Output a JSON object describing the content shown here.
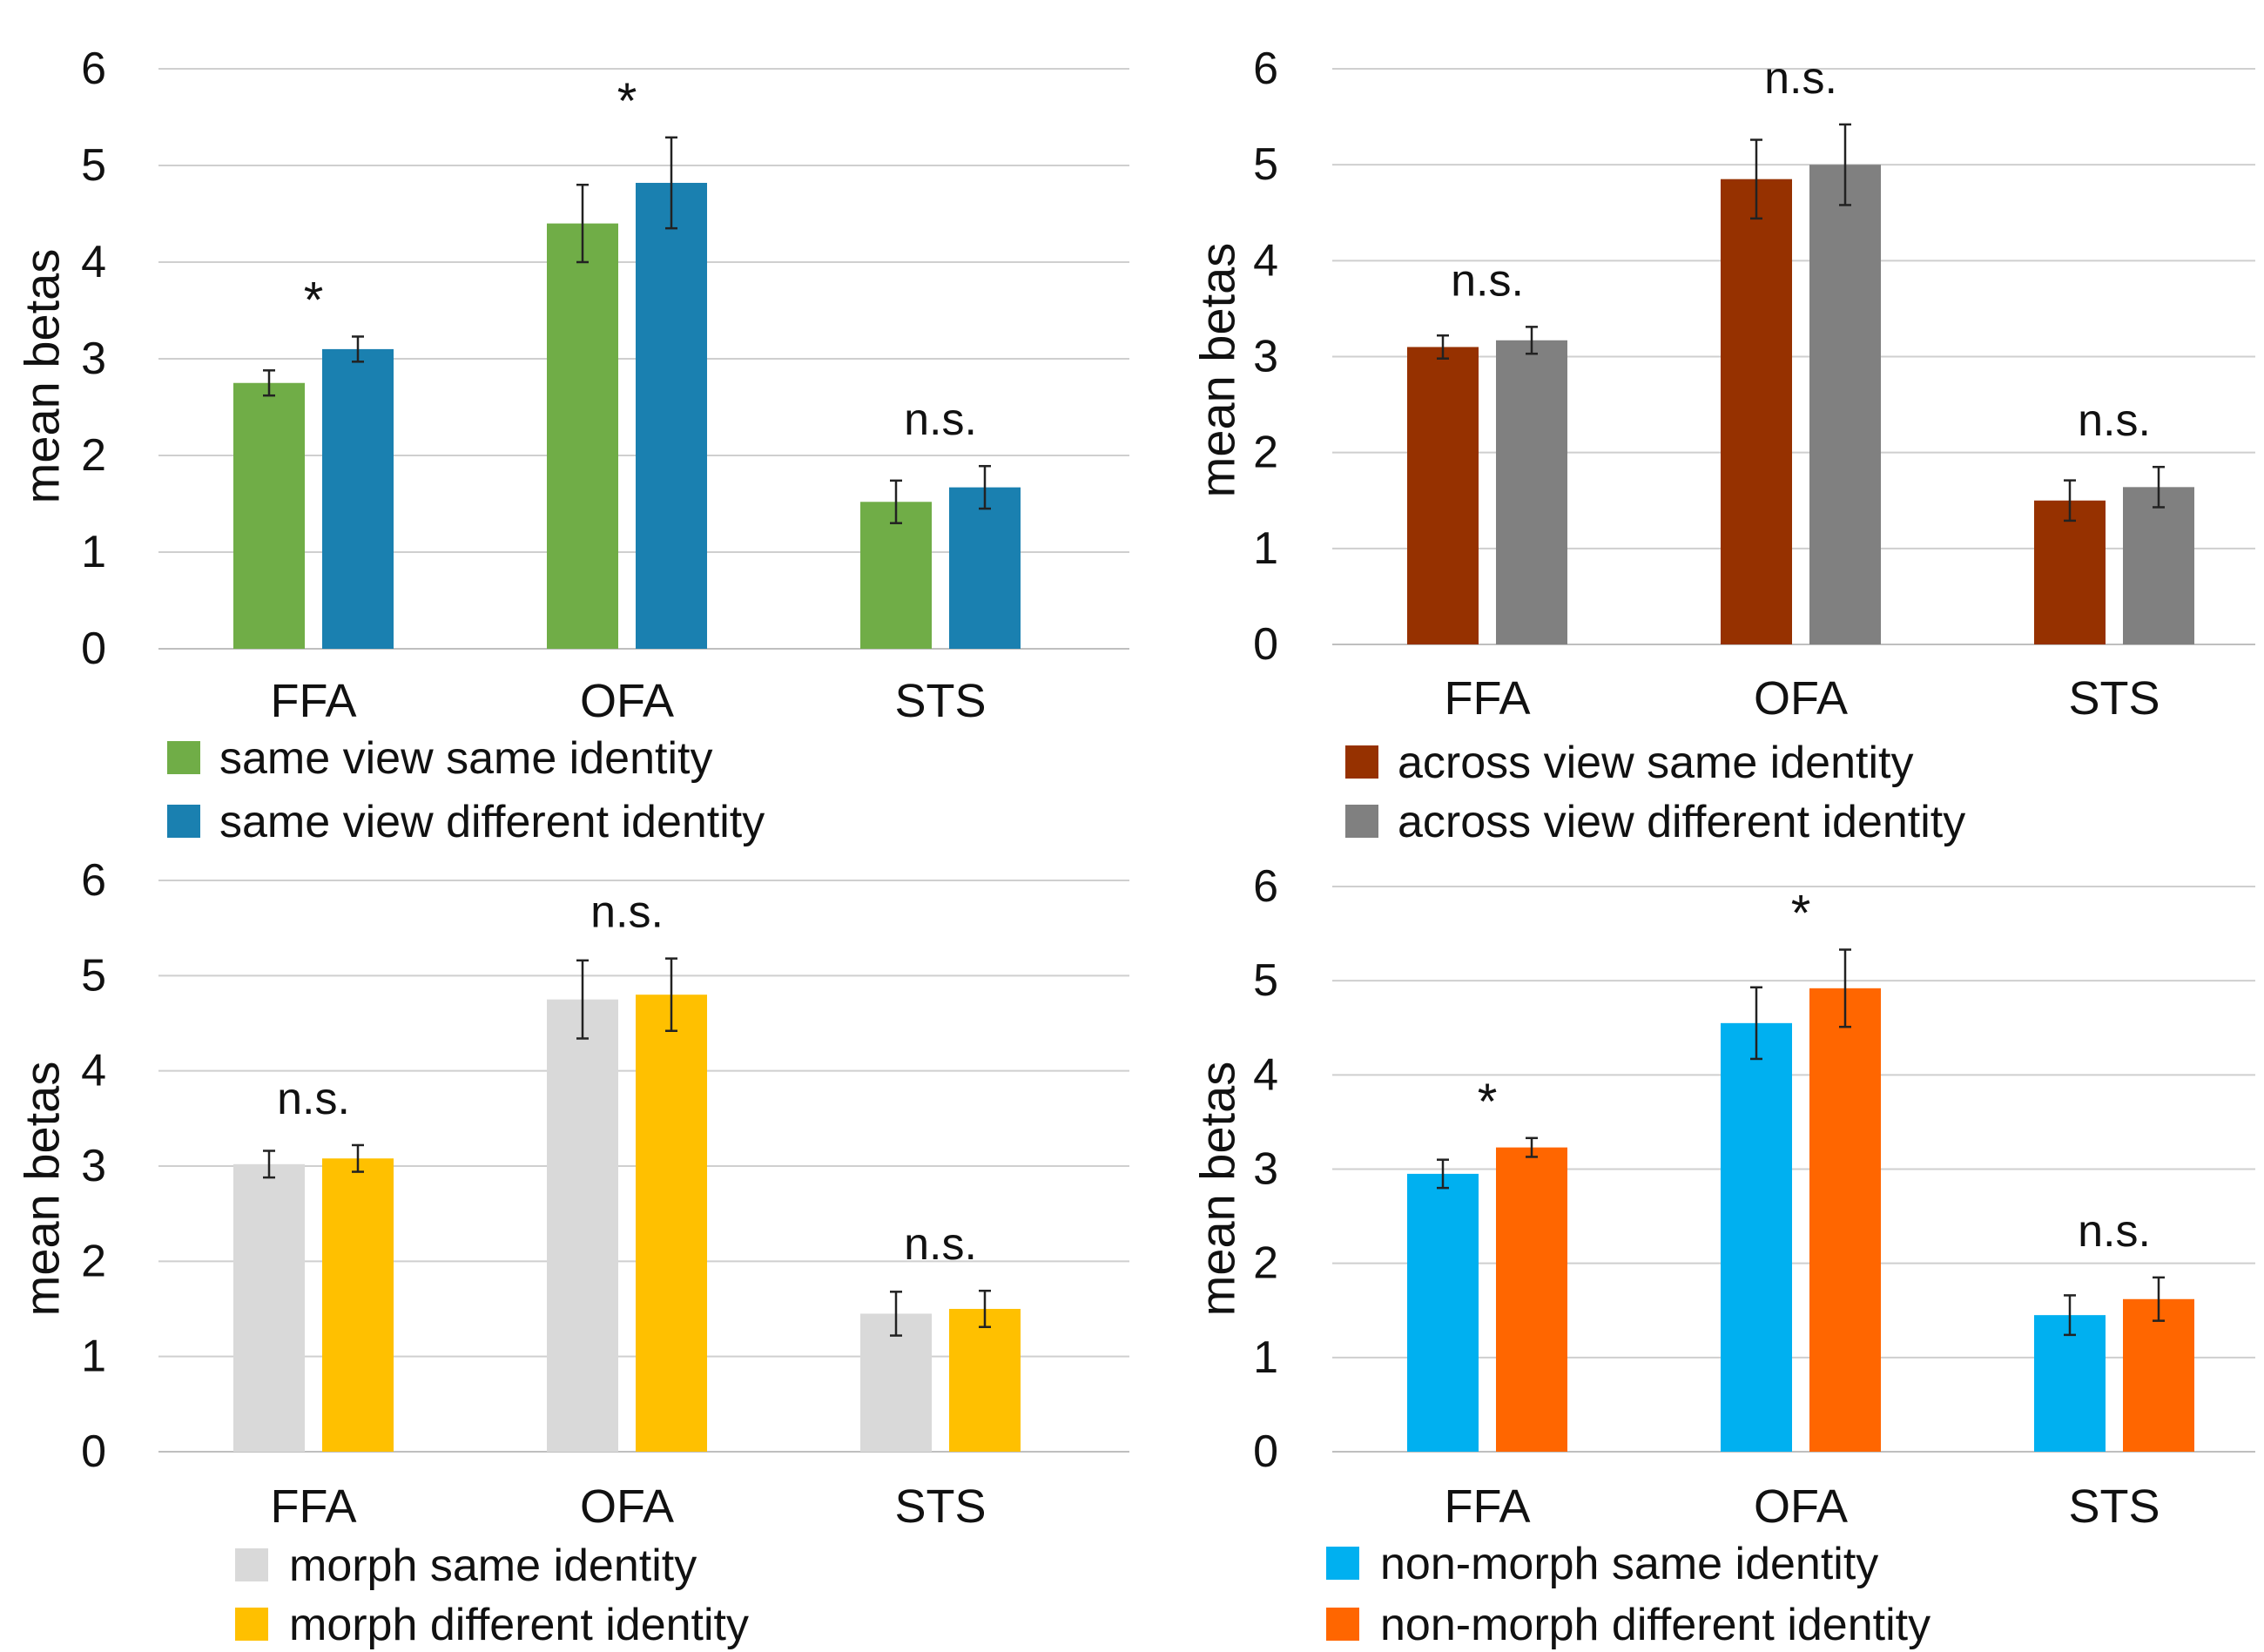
{
  "figure": {
    "panels": [
      {
        "id": "panel-same-view",
        "sig_labels": [
          "*",
          "*",
          "n.s."
        ],
        "colors": [
          "#70ad47",
          "#1a80b0"
        ]
      },
      {
        "id": "panel-across-view",
        "sig_labels": [
          "n.s.",
          "n.s.",
          "n.s."
        ],
        "colors": [
          "#963100",
          "#808080"
        ]
      },
      {
        "id": "panel-morph",
        "sig_labels": [
          "n.s.",
          "n.s.",
          "n.s."
        ],
        "colors": [
          "#d9d9d9",
          "#ffc000"
        ]
      },
      {
        "id": "panel-non-morph",
        "sig_labels": [
          "*",
          "*",
          "n.s."
        ],
        "colors": [
          "#00b0f0",
          "#ff6600"
        ]
      }
    ]
  },
  "chart_data": [
    {
      "type": "bar",
      "title": "",
      "xlabel": "",
      "ylabel": "mean betas",
      "ylim": [
        0,
        6
      ],
      "yticks": [
        "0",
        "1",
        "2",
        "3",
        "4",
        "5",
        "6"
      ],
      "categories": [
        "FFA",
        "OFA",
        "STS"
      ],
      "series": [
        {
          "name": "same view same identity",
          "values": [
            2.75,
            4.4,
            1.52
          ],
          "errors": [
            0.13,
            0.4,
            0.22
          ]
        },
        {
          "name": "same view different identity",
          "values": [
            3.1,
            4.82,
            1.67
          ],
          "errors": [
            0.13,
            0.47,
            0.22
          ]
        }
      ],
      "annotations": [
        "*",
        "*",
        "n.s."
      ]
    },
    {
      "type": "bar",
      "title": "",
      "xlabel": "",
      "ylabel": "mean betas",
      "ylim": [
        0,
        6
      ],
      "yticks": [
        "0",
        "1",
        "2",
        "3",
        "4",
        "5",
        "6"
      ],
      "categories": [
        "FFA",
        "OFA",
        "STS"
      ],
      "series": [
        {
          "name": "across view same identity",
          "values": [
            3.1,
            4.85,
            1.5
          ],
          "errors": [
            0.12,
            0.41,
            0.21
          ]
        },
        {
          "name": "across view different identity",
          "values": [
            3.17,
            5.0,
            1.64
          ],
          "errors": [
            0.14,
            0.42,
            0.21
          ]
        }
      ],
      "annotations": [
        "n.s.",
        "n.s.",
        "n.s."
      ]
    },
    {
      "type": "bar",
      "title": "",
      "xlabel": "",
      "ylabel": "mean betas",
      "ylim": [
        0,
        6
      ],
      "yticks": [
        "0",
        "1",
        "2",
        "3",
        "4",
        "5",
        "6"
      ],
      "categories": [
        "FFA",
        "OFA",
        "STS"
      ],
      "series": [
        {
          "name": "morph same identity",
          "values": [
            3.02,
            4.75,
            1.45
          ],
          "errors": [
            0.14,
            0.41,
            0.23
          ]
        },
        {
          "name": "morph different identity",
          "values": [
            3.08,
            4.8,
            1.5
          ],
          "errors": [
            0.14,
            0.38,
            0.19
          ]
        }
      ],
      "annotations": [
        "n.s.",
        "n.s.",
        "n.s."
      ]
    },
    {
      "type": "bar",
      "title": "",
      "xlabel": "",
      "ylabel": "mean betas",
      "ylim": [
        0,
        6
      ],
      "yticks": [
        "0",
        "1",
        "2",
        "3",
        "4",
        "5",
        "6"
      ],
      "categories": [
        "FFA",
        "OFA",
        "STS"
      ],
      "series": [
        {
          "name": "non-morph same identity",
          "values": [
            2.95,
            4.55,
            1.45
          ],
          "errors": [
            0.15,
            0.38,
            0.21
          ]
        },
        {
          "name": "non-morph different identity",
          "values": [
            3.23,
            4.92,
            1.62
          ],
          "errors": [
            0.1,
            0.41,
            0.23
          ]
        }
      ],
      "annotations": [
        "*",
        "*",
        "n.s."
      ]
    }
  ]
}
